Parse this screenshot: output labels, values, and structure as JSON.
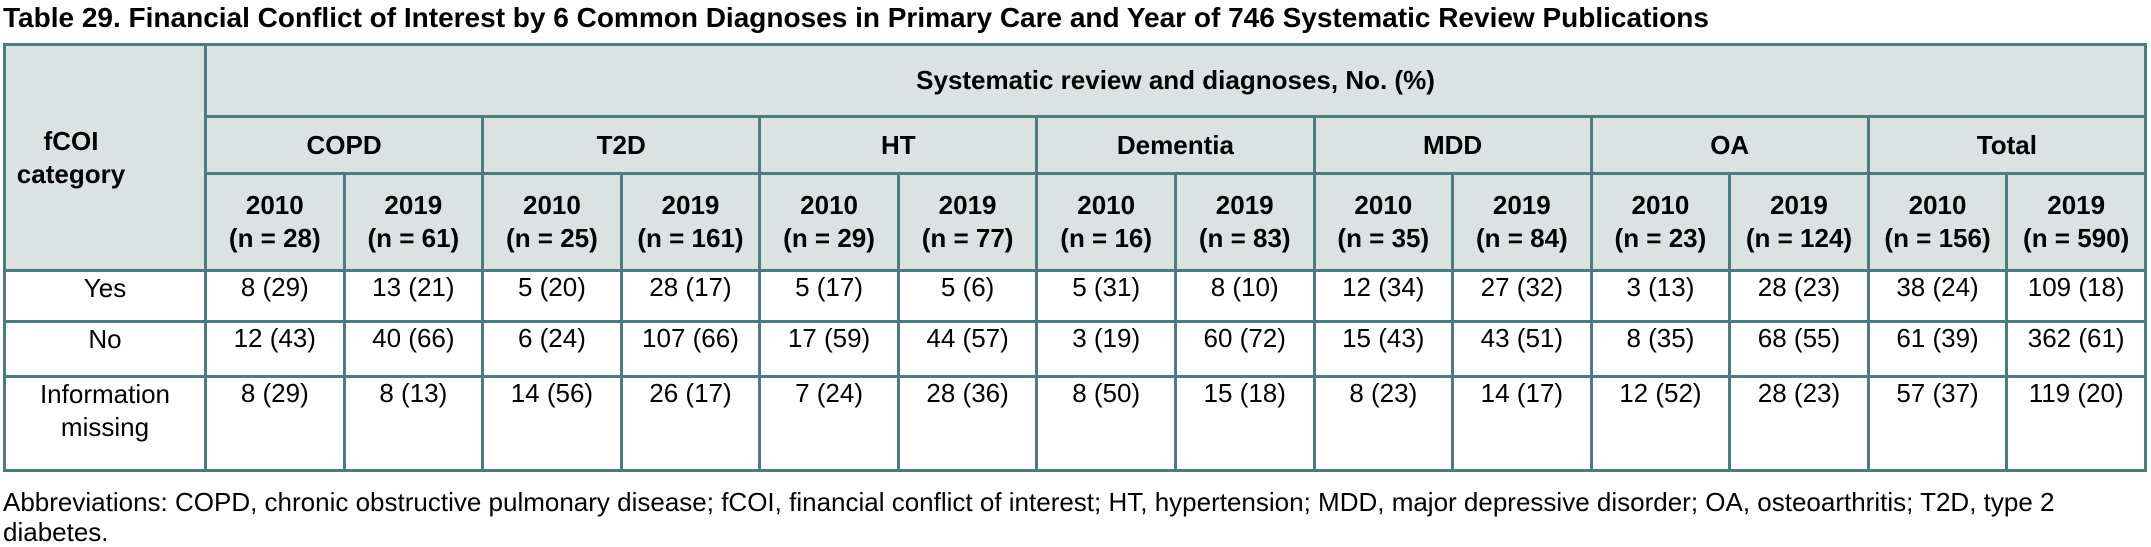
{
  "title": "Table 29. Financial Conflict of Interest by 6 Common Diagnoses in Primary Care and Year of 746 Systematic Review Publications",
  "table": {
    "row_header": "fCOI category",
    "span_header": "Systematic review and diagnoses, No. (%)",
    "groups": [
      {
        "label": "COPD",
        "cols": [
          {
            "year": "2010",
            "n": "(n = 28)"
          },
          {
            "year": "2019",
            "n": "(n = 61)"
          }
        ]
      },
      {
        "label": "T2D",
        "cols": [
          {
            "year": "2010",
            "n": "(n = 25)"
          },
          {
            "year": "2019",
            "n": "(n = 161)"
          }
        ]
      },
      {
        "label": "HT",
        "cols": [
          {
            "year": "2010",
            "n": "(n = 29)"
          },
          {
            "year": "2019",
            "n": "(n = 77)"
          }
        ]
      },
      {
        "label": "Dementia",
        "cols": [
          {
            "year": "2010",
            "n": "(n = 16)"
          },
          {
            "year": "2019",
            "n": "(n = 83)"
          }
        ]
      },
      {
        "label": "MDD",
        "cols": [
          {
            "year": "2010",
            "n": "(n = 35)"
          },
          {
            "year": "2019",
            "n": "(n = 84)"
          }
        ]
      },
      {
        "label": "OA",
        "cols": [
          {
            "year": "2010",
            "n": "(n = 23)"
          },
          {
            "year": "2019",
            "n": "(n = 124)"
          }
        ]
      },
      {
        "label": "Total",
        "cols": [
          {
            "year": "2010",
            "n": "(n = 156)"
          },
          {
            "year": "2019",
            "n": "(n = 590)"
          }
        ]
      }
    ],
    "rows": [
      {
        "label": "Yes",
        "values": [
          "8 (29)",
          "13 (21)",
          "5 (20)",
          "28 (17)",
          "5 (17)",
          "5 (6)",
          "5 (31)",
          "8 (10)",
          "12 (34)",
          "27 (32)",
          "3 (13)",
          "28 (23)",
          "38 (24)",
          "109 (18)"
        ]
      },
      {
        "label": "No",
        "values": [
          "12 (43)",
          "40 (66)",
          "6 (24)",
          "107 (66)",
          "17 (59)",
          "44 (57)",
          "3 (19)",
          "60 (72)",
          "15 (43)",
          "43 (51)",
          "8 (35)",
          "68 (55)",
          "61 (39)",
          "362 (61)"
        ]
      },
      {
        "label": "Information missing",
        "values": [
          "8 (29)",
          "8 (13)",
          "14 (56)",
          "26 (17)",
          "7 (24)",
          "28 (36)",
          "8 (50)",
          "15 (18)",
          "8 (23)",
          "14 (17)",
          "12 (52)",
          "28 (23)",
          "57 (37)",
          "119 (20)"
        ]
      }
    ]
  },
  "footnote": "Abbreviations: COPD, chronic obstructive pulmonary disease; fCOI, financial conflict of interest; HT, hypertension; MDD, major depressive disorder; OA, osteoarthritis; T2D, type 2 diabetes.",
  "colors": {
    "border_teal": "#4a7d7f",
    "header_background": "#dce2e1",
    "body_background": "#ffffff",
    "text": "#000000"
  }
}
